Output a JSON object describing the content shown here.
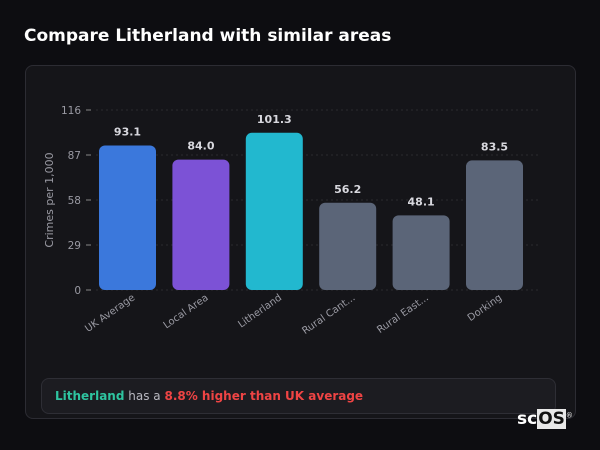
{
  "title": "Compare Litherland with similar areas",
  "footer": {
    "place": "Litherland",
    "middle": " has a ",
    "comparison": "8.8% higher than UK average"
  },
  "logo": {
    "text_sc": "sc",
    "text_os": "OS",
    "reg": "®"
  },
  "chart_data": {
    "type": "bar",
    "title": "",
    "ylabel": "Crimes per 1,000",
    "xlabel": "",
    "ylim": [
      0,
      116
    ],
    "yticks": [
      0,
      29,
      58,
      87,
      116
    ],
    "grid": true,
    "categories": [
      "UK Average",
      "Local Area",
      "Litherland",
      "Rural Cant...",
      "Rural East...",
      "Dorking"
    ],
    "values": [
      93.1,
      84.0,
      101.3,
      56.2,
      48.1,
      83.5
    ],
    "value_labels": [
      "93.1",
      "84.0",
      "101.3",
      "56.2",
      "48.1",
      "83.5"
    ],
    "colors": [
      "#3b78dc",
      "#7c52d6",
      "#22b8cf",
      "#5b6578",
      "#5b6578",
      "#5b6578"
    ]
  }
}
